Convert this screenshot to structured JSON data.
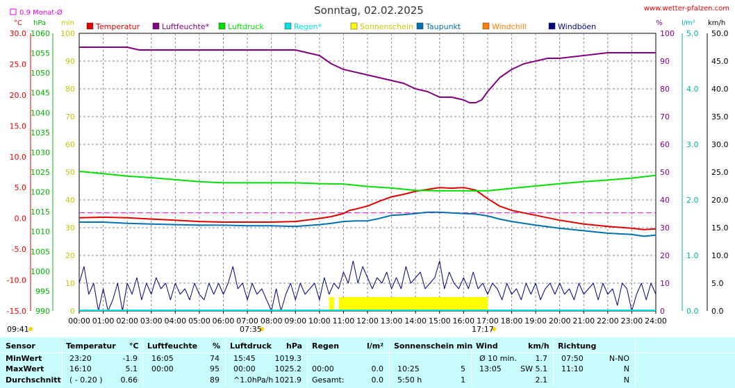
{
  "title": "Sonntag, 02.02.2025",
  "source": "www.wetter-pfalzen.com",
  "month_avg_label": "0.9 Monat-Ø",
  "axis_units": {
    "temp": "°C",
    "pressure": "hPa",
    "sunshine": "min",
    "humidity": "%",
    "rain": "l/m²",
    "wind": "km/h"
  },
  "sunrise": "07:35",
  "sunset": "17:17",
  "colors": {
    "temperature": "#e00000",
    "humidity": "#800080",
    "pressure": "#00e000",
    "rain": "#00e0e0",
    "sunshine": "#ffff00",
    "dewpoint": "#0070b0",
    "windchill": "#ff8000",
    "gusts": "#000080"
  },
  "chart_data": {
    "type": "line",
    "title": "Sonntag, 02.02.2025",
    "x_ticks": [
      "00:00",
      "01:00",
      "02:00",
      "03:00",
      "04:00",
      "05:00",
      "06:00",
      "07:00",
      "08:00",
      "09:00",
      "10:00",
      "11:00",
      "12:00",
      "13:00",
      "14:00",
      "15:00",
      "16:00",
      "17:00",
      "18:00",
      "19:00",
      "20:00",
      "21:00",
      "22:00",
      "23:00",
      "24:00"
    ],
    "axes": {
      "temp": {
        "unit": "°C",
        "min": -15,
        "max": 30,
        "ticks": [
          "-15.0",
          "-10.0",
          "-5.0",
          "0.0",
          "5.0",
          "10.0",
          "15.0",
          "20.0",
          "25.0",
          "30.0"
        ]
      },
      "pressure": {
        "unit": "hPa",
        "min": 990,
        "max": 1060,
        "ticks": [
          "990",
          "995",
          "1000",
          "1005",
          "1010",
          "1015",
          "1020",
          "1025",
          "1030",
          "1035",
          "1040",
          "1045",
          "1050",
          "1055",
          "1060"
        ]
      },
      "sunshine": {
        "unit": "min",
        "min": 0,
        "max": 100,
        "ticks": [
          "0",
          "10",
          "20",
          "30",
          "40",
          "50",
          "60",
          "70",
          "80",
          "90",
          "100"
        ]
      },
      "humidity": {
        "unit": "%",
        "min": 0,
        "max": 100,
        "ticks": [
          "0",
          "10",
          "20",
          "30",
          "40",
          "50",
          "60",
          "70",
          "80",
          "90",
          "100"
        ]
      },
      "rain": {
        "unit": "l/m²",
        "min": 0,
        "max": 5,
        "ticks": [
          "0.0",
          "1.0",
          "2.0",
          "3.0",
          "4.0",
          "5.0"
        ]
      },
      "wind": {
        "unit": "km/h",
        "min": 0,
        "max": 50,
        "ticks": [
          "0.0",
          "5.0",
          "10.0",
          "15.0",
          "20.0",
          "25.0",
          "30.0",
          "35.0",
          "40.0",
          "45.0",
          "50.0"
        ]
      }
    },
    "legend": [
      "Temperatur",
      "Luftfeuchte*",
      "Luftdruck",
      "Regen*",
      "Sonnenschein",
      "Taupunkt",
      "Windchill",
      "Windböen"
    ],
    "month_avg_temp": 0.9,
    "series": [
      {
        "name": "Temperatur",
        "axis": "temp",
        "x": [
          0,
          1,
          2,
          3,
          4,
          5,
          6,
          7,
          8,
          9,
          10,
          10.5,
          11,
          11.25,
          11.5,
          12,
          12.5,
          13,
          13.5,
          14,
          14.5,
          15,
          15.5,
          16,
          16.5,
          17,
          17.5,
          18,
          19,
          20,
          21,
          22,
          23,
          23.5,
          24
        ],
        "y": [
          0.1,
          0.2,
          0.1,
          -0.1,
          -0.3,
          -0.5,
          -0.6,
          -0.6,
          -0.6,
          -0.5,
          0.0,
          0.3,
          0.8,
          1.3,
          1.5,
          2.0,
          2.8,
          3.5,
          3.9,
          4.4,
          4.7,
          5.0,
          4.9,
          5.0,
          4.6,
          3.2,
          2.0,
          1.3,
          0.5,
          -0.3,
          -0.9,
          -1.3,
          -1.6,
          -1.8,
          -1.7
        ]
      },
      {
        "name": "Luftfeuchte*",
        "axis": "humidity",
        "x": [
          0,
          1,
          2,
          2.5,
          3,
          4,
          5,
          6,
          7,
          8,
          9,
          9.5,
          10,
          10.5,
          11,
          11.5,
          12,
          12.5,
          13,
          13.5,
          14,
          14.5,
          15,
          15.5,
          16,
          16.25,
          16.5,
          16.75,
          17,
          17.5,
          18,
          18.5,
          19,
          19.5,
          20,
          21,
          22,
          22.5,
          23,
          23.5,
          24
        ],
        "y": [
          95,
          95,
          95,
          94,
          94,
          94,
          94,
          94,
          94,
          94,
          94,
          93,
          92,
          89,
          87,
          86,
          85,
          84,
          83,
          82,
          80,
          79,
          77,
          77,
          76,
          75,
          75,
          76,
          79,
          84,
          87,
          89,
          90,
          91,
          91,
          92,
          93,
          93,
          93,
          93,
          93
        ]
      },
      {
        "name": "Luftdruck",
        "axis": "pressure",
        "x": [
          0,
          1,
          2,
          3,
          4,
          5,
          6,
          7,
          8,
          9,
          10,
          11,
          12,
          13,
          14,
          15,
          16,
          17,
          18,
          19,
          20,
          21,
          22,
          23,
          24
        ],
        "y": [
          1025.2,
          1024.6,
          1024.0,
          1023.6,
          1023.1,
          1022.6,
          1022.3,
          1022.3,
          1022.3,
          1022.3,
          1022.1,
          1022.0,
          1021.4,
          1021.0,
          1020.4,
          1020.3,
          1020.3,
          1020.3,
          1020.9,
          1021.5,
          1022.1,
          1022.6,
          1023.0,
          1023.5,
          1024.2
        ]
      },
      {
        "name": "Taupunkt",
        "axis": "temp",
        "x": [
          0,
          1,
          2,
          3,
          4,
          5,
          6,
          7,
          8,
          9,
          10,
          10.5,
          11,
          11.5,
          12,
          12.5,
          13,
          13.5,
          14,
          14.5,
          15,
          15.5,
          16,
          16.5,
          17,
          17.5,
          18,
          19,
          20,
          21,
          22,
          23,
          23.5,
          24
        ],
        "y": [
          -0.6,
          -0.6,
          -0.8,
          -0.9,
          -1.0,
          -1.1,
          -1.1,
          -1.2,
          -1.2,
          -1.3,
          -1.0,
          -0.8,
          -0.5,
          -0.4,
          -0.4,
          0.0,
          0.5,
          0.6,
          0.8,
          1.0,
          1.0,
          0.9,
          0.8,
          0.7,
          0.4,
          -0.1,
          -0.5,
          -1.1,
          -1.6,
          -2.0,
          -2.4,
          -2.6,
          -2.9,
          -2.7
        ]
      },
      {
        "name": "Windböen",
        "axis": "wind",
        "x": [
          0,
          0.2,
          0.4,
          0.6,
          0.8,
          1.0,
          1.2,
          1.4,
          1.6,
          1.8,
          2.0,
          2.2,
          2.4,
          2.6,
          2.8,
          3.0,
          3.2,
          3.4,
          3.6,
          3.8,
          4.0,
          4.2,
          4.4,
          4.6,
          4.8,
          5.0,
          5.2,
          5.4,
          5.6,
          5.8,
          6.0,
          6.2,
          6.4,
          6.6,
          6.8,
          7.0,
          7.2,
          7.4,
          7.6,
          7.8,
          8.0,
          8.2,
          8.4,
          8.6,
          8.8,
          9.0,
          9.2,
          9.4,
          9.6,
          9.8,
          10.0,
          10.2,
          10.4,
          10.6,
          10.8,
          11.0,
          11.2,
          11.4,
          11.6,
          11.8,
          12.0,
          12.2,
          12.4,
          12.6,
          12.8,
          13.0,
          13.2,
          13.4,
          13.6,
          13.8,
          14.0,
          14.2,
          14.4,
          14.6,
          14.8,
          15.0,
          15.2,
          15.4,
          15.6,
          15.8,
          16.0,
          16.2,
          16.4,
          16.6,
          16.8,
          17.0,
          17.2,
          17.4,
          17.6,
          17.8,
          18.0,
          18.2,
          18.4,
          18.6,
          18.8,
          19.0,
          19.2,
          19.4,
          19.6,
          19.8,
          20.0,
          20.2,
          20.4,
          20.6,
          20.8,
          21.0,
          21.2,
          21.4,
          21.6,
          21.8,
          22.0,
          22.2,
          22.4,
          22.6,
          22.8,
          23.0,
          23.2,
          23.4,
          23.6,
          23.8,
          24.0
        ],
        "y": [
          5,
          8,
          3,
          5,
          0,
          4,
          0,
          2,
          5,
          0,
          5,
          3,
          6,
          2,
          5,
          3,
          6,
          4,
          5,
          2,
          5,
          3,
          4,
          2,
          5,
          3,
          2,
          5,
          3,
          5,
          3,
          5,
          8,
          4,
          5,
          2,
          5,
          3,
          4,
          2,
          0,
          4,
          0,
          3,
          5,
          2,
          5,
          3,
          4,
          5,
          2,
          6,
          3,
          5,
          4,
          7,
          5,
          9,
          5,
          8,
          6,
          4,
          6,
          5,
          7,
          4,
          6,
          4,
          8,
          5,
          6,
          7,
          4,
          5,
          6,
          9,
          4,
          7,
          5,
          4,
          6,
          4,
          7,
          4,
          5,
          3,
          5,
          4,
          2,
          5,
          3,
          4,
          2,
          5,
          3,
          5,
          2,
          4,
          5,
          3,
          5,
          3,
          4,
          2,
          5,
          3,
          4,
          5,
          2,
          5,
          3,
          4,
          1,
          5,
          4,
          0,
          3,
          5,
          2,
          5,
          3
        ]
      },
      {
        "name": "Sonnenschein",
        "axis": "sunshine",
        "x": [
          10.4,
          10.8,
          11.0,
          11.2,
          11.4,
          11.6,
          11.8,
          12.0,
          12.2,
          12.4,
          12.6,
          12.8,
          13.0,
          13.2,
          13.4,
          13.6,
          13.8,
          14.0,
          14.2,
          14.4,
          14.6,
          14.8,
          15.0,
          15.2,
          15.4,
          15.6,
          15.8,
          16.0,
          16.2,
          16.4,
          16.6,
          16.8
        ],
        "y": [
          5,
          5,
          5,
          5,
          5,
          5,
          5,
          5,
          5,
          5,
          5,
          5,
          5,
          5,
          5,
          5,
          5,
          5,
          5,
          5,
          5,
          5,
          5,
          5,
          5,
          5,
          5,
          5,
          5,
          5,
          5,
          5
        ]
      },
      {
        "name": "Regen*",
        "axis": "rain",
        "x": [
          0,
          24
        ],
        "y": [
          0,
          0
        ]
      }
    ]
  },
  "table": {
    "headers": {
      "sensor": "Sensor",
      "temp": "Temperatur",
      "temp_unit": "°C",
      "hum": "Luftfeuchte",
      "hum_unit": "%",
      "press": "Luftdruck",
      "press_unit": "hPa",
      "rain": "Regen",
      "rain_unit": "l/m²",
      "sun": "Sonnenschein min",
      "wind": "Wind",
      "wind_unit": "km/h",
      "dir": "Richtung"
    },
    "rows": [
      {
        "label": "MinWert",
        "temp_t": "23:20",
        "temp_v": "-1.9",
        "hum_t": "16:05",
        "hum_v": "74",
        "press_t": "15:45",
        "press_v": "1019.3",
        "rain_t": "",
        "rain_v": "",
        "sun_t": "",
        "sun_v": "",
        "wind_t": "Ø 10 min.",
        "wind_v": "1.7",
        "dir_t": "07:50",
        "dir_v": "N-NO"
      },
      {
        "label": "MaxWert",
        "temp_t": "16:10",
        "temp_v": "5.1",
        "hum_t": "00:00",
        "hum_v": "95",
        "press_t": "00:00",
        "press_v": "1025.2",
        "rain_t": "00:00",
        "rain_v": "0.0",
        "sun_t": "10:25",
        "sun_v": "5",
        "wind_t": "13:05",
        "wind_v": "SW 5.1",
        "dir_t": "11:10",
        "dir_v": "N"
      },
      {
        "label": "Durchschnitt",
        "temp_t": "( - 0.20 )",
        "temp_v": "0.66",
        "hum_t": "",
        "hum_v": "89",
        "press_t": "^1.0hPa/h",
        "press_v": "1021.9",
        "rain_t": "Gesamt:",
        "rain_v": "0.0",
        "sun_t": "5:50 h",
        "sun_v": "1",
        "wind_t": "",
        "wind_v": "2.1",
        "dir_t": "",
        "dir_v": "N"
      }
    ]
  }
}
